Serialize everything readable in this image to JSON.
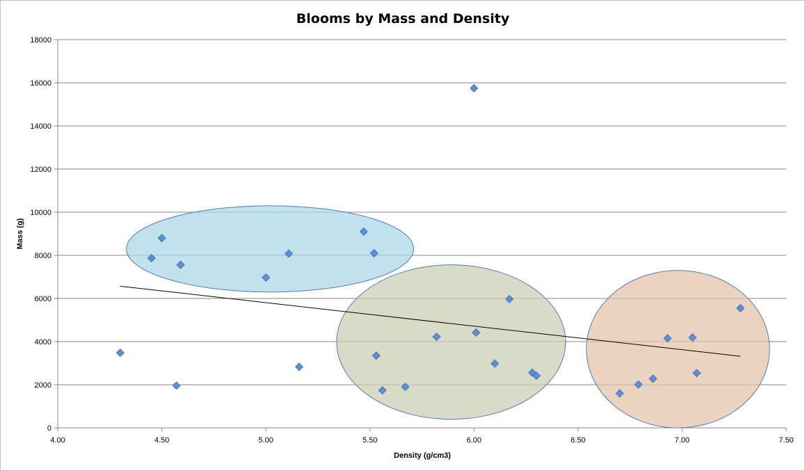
{
  "chart_data": {
    "type": "scatter",
    "title": "Blooms by Mass and Density",
    "xlabel": "Density (g/cm3)",
    "ylabel": "Mass (g)",
    "xlim": [
      4.0,
      7.5
    ],
    "ylim": [
      0,
      18000
    ],
    "x_ticks": [
      "4.00",
      "4.50",
      "5.00",
      "5.50",
      "6.00",
      "6.50",
      "7.00",
      "7.50"
    ],
    "y_ticks": [
      "0",
      "2000",
      "4000",
      "6000",
      "8000",
      "10000",
      "12000",
      "14000",
      "16000",
      "18000"
    ],
    "grid": "horizontal",
    "legend": "none",
    "marker": "diamond",
    "colors": {
      "marker_fill": "#5b8fd6",
      "marker_stroke": "#3a6db5",
      "cluster_blue": "#a9d6e8",
      "cluster_green": "#c9cdb0",
      "cluster_orange": "#e4c2a8",
      "cluster_stroke": "#4f7cb8",
      "trendline": "#000000",
      "gridline": "#868686"
    },
    "points": [
      {
        "x": 4.3,
        "y": 3480
      },
      {
        "x": 4.45,
        "y": 7870
      },
      {
        "x": 4.5,
        "y": 8800
      },
      {
        "x": 4.57,
        "y": 1960
      },
      {
        "x": 4.59,
        "y": 7560
      },
      {
        "x": 5.0,
        "y": 6970
      },
      {
        "x": 5.11,
        "y": 8080
      },
      {
        "x": 5.16,
        "y": 2830
      },
      {
        "x": 5.47,
        "y": 9100
      },
      {
        "x": 5.52,
        "y": 8100
      },
      {
        "x": 5.53,
        "y": 3350
      },
      {
        "x": 5.56,
        "y": 1740
      },
      {
        "x": 5.67,
        "y": 1900
      },
      {
        "x": 5.82,
        "y": 4220
      },
      {
        "x": 6.0,
        "y": 15750
      },
      {
        "x": 6.01,
        "y": 4420
      },
      {
        "x": 6.1,
        "y": 2980
      },
      {
        "x": 6.17,
        "y": 5970
      },
      {
        "x": 6.28,
        "y": 2560
      },
      {
        "x": 6.3,
        "y": 2420
      },
      {
        "x": 6.7,
        "y": 1600
      },
      {
        "x": 6.79,
        "y": 2010
      },
      {
        "x": 6.86,
        "y": 2280
      },
      {
        "x": 6.93,
        "y": 4150
      },
      {
        "x": 7.05,
        "y": 4190
      },
      {
        "x": 7.07,
        "y": 2540
      },
      {
        "x": 7.28,
        "y": 5550
      }
    ],
    "trendline": {
      "x": [
        4.3,
        7.28
      ],
      "y": [
        6570,
        3320
      ]
    },
    "clusters": [
      {
        "color": "cluster_blue",
        "cx": 5.02,
        "cy": 8300,
        "rx": 0.69,
        "ry": 2000
      },
      {
        "color": "cluster_green",
        "cx": 5.89,
        "cy": 3980,
        "rx": 0.55,
        "ry": 3580
      },
      {
        "color": "cluster_orange",
        "cx": 6.98,
        "cy": 3650,
        "rx": 0.44,
        "ry": 3650
      }
    ]
  }
}
